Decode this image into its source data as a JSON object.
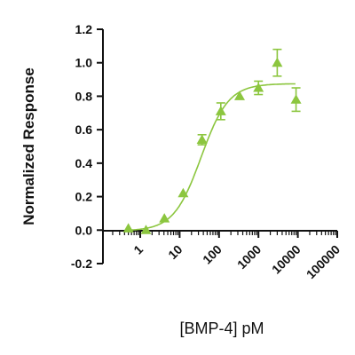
{
  "chart_data": {
    "type": "scatter",
    "title": "",
    "xlabel": "[BMP-4] pM",
    "ylabel": "Normalized Response",
    "x_scale": "log",
    "xlim": [
      0.2,
      100000
    ],
    "ylim": [
      -0.2,
      1.2
    ],
    "x_ticks": [
      1,
      10,
      100,
      1000,
      10000,
      100000
    ],
    "x_tick_labels": [
      "1",
      "10",
      "100",
      "1000",
      "10000",
      "100000"
    ],
    "y_ticks": [
      -0.2,
      0.0,
      0.2,
      0.4,
      0.6,
      0.8,
      1.0,
      1.2
    ],
    "y_tick_labels": [
      "-0.2",
      "0.0",
      "0.2",
      "0.4",
      "0.6",
      "0.8",
      "1.0",
      "1.2"
    ],
    "grid": false,
    "color": "#8cc63f",
    "series": [
      {
        "marker": "triangle",
        "x": [
          0.5,
          1.4,
          4.1,
          12.3,
          37,
          111,
          333,
          1000,
          3000,
          9000
        ],
        "y": [
          0.01,
          0.0,
          0.07,
          0.22,
          0.54,
          0.71,
          0.8,
          0.85,
          1.0,
          0.78
        ],
        "y_err": [
          0,
          0,
          0,
          0,
          0.03,
          0.05,
          0,
          0.04,
          0.08,
          0.07
        ]
      }
    ],
    "fit_curve": {
      "type": "4PL",
      "bottom": -0.005,
      "top": 0.875,
      "ec50": 35,
      "hill": 1.25
    }
  }
}
